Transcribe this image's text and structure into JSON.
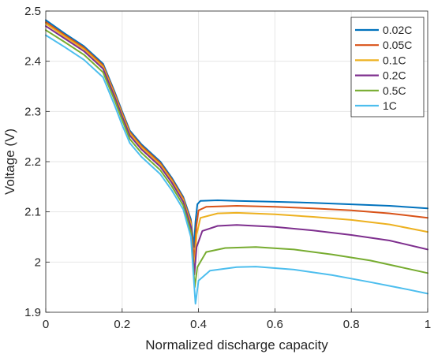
{
  "chart_data": {
    "type": "line",
    "xlabel": "Normalized discharge capacity",
    "ylabel": "Voltage (V)",
    "xlim": [
      0,
      1
    ],
    "ylim": [
      1.9,
      2.5
    ],
    "xticks": [
      "0",
      "0.2",
      "0.4",
      "0.6",
      "0.8",
      "1"
    ],
    "yticks": [
      "1.9",
      "2",
      "2.1",
      "2.2",
      "2.3",
      "2.4",
      "2.5"
    ],
    "grid": true,
    "legend_position": "top-right",
    "series": [
      {
        "name": "0.02C",
        "color": "#0072BD",
        "points": [
          [
            0,
            2.482
          ],
          [
            0.05,
            2.455
          ],
          [
            0.1,
            2.43
          ],
          [
            0.15,
            2.395
          ],
          [
            0.18,
            2.34
          ],
          [
            0.2,
            2.3
          ],
          [
            0.22,
            2.262
          ],
          [
            0.25,
            2.235
          ],
          [
            0.3,
            2.2
          ],
          [
            0.33,
            2.168
          ],
          [
            0.36,
            2.13
          ],
          [
            0.38,
            2.085
          ],
          [
            0.388,
            2.03
          ],
          [
            0.392,
            2.08
          ],
          [
            0.397,
            2.115
          ],
          [
            0.405,
            2.122
          ],
          [
            0.45,
            2.123
          ],
          [
            0.5,
            2.122
          ],
          [
            0.6,
            2.12
          ],
          [
            0.7,
            2.118
          ],
          [
            0.8,
            2.115
          ],
          [
            0.9,
            2.112
          ],
          [
            1.0,
            2.107
          ]
        ]
      },
      {
        "name": "0.05C",
        "color": "#D95319",
        "points": [
          [
            0,
            2.478
          ],
          [
            0.05,
            2.452
          ],
          [
            0.1,
            2.427
          ],
          [
            0.15,
            2.392
          ],
          [
            0.18,
            2.337
          ],
          [
            0.2,
            2.297
          ],
          [
            0.22,
            2.259
          ],
          [
            0.25,
            2.232
          ],
          [
            0.3,
            2.197
          ],
          [
            0.33,
            2.165
          ],
          [
            0.36,
            2.127
          ],
          [
            0.38,
            2.08
          ],
          [
            0.389,
            2.0
          ],
          [
            0.394,
            2.07
          ],
          [
            0.4,
            2.103
          ],
          [
            0.42,
            2.11
          ],
          [
            0.5,
            2.112
          ],
          [
            0.6,
            2.11
          ],
          [
            0.7,
            2.107
          ],
          [
            0.8,
            2.103
          ],
          [
            0.9,
            2.097
          ],
          [
            1.0,
            2.088
          ]
        ]
      },
      {
        "name": "0.1C",
        "color": "#EDB120",
        "points": [
          [
            0,
            2.475
          ],
          [
            0.05,
            2.449
          ],
          [
            0.1,
            2.424
          ],
          [
            0.15,
            2.389
          ],
          [
            0.18,
            2.334
          ],
          [
            0.2,
            2.294
          ],
          [
            0.22,
            2.256
          ],
          [
            0.25,
            2.229
          ],
          [
            0.3,
            2.194
          ],
          [
            0.33,
            2.162
          ],
          [
            0.36,
            2.124
          ],
          [
            0.38,
            2.076
          ],
          [
            0.389,
            1.985
          ],
          [
            0.395,
            2.055
          ],
          [
            0.405,
            2.088
          ],
          [
            0.45,
            2.097
          ],
          [
            0.5,
            2.098
          ],
          [
            0.6,
            2.095
          ],
          [
            0.7,
            2.09
          ],
          [
            0.8,
            2.084
          ],
          [
            0.9,
            2.075
          ],
          [
            1.0,
            2.06
          ]
        ]
      },
      {
        "name": "0.2C",
        "color": "#7E2F8E",
        "points": [
          [
            0,
            2.47
          ],
          [
            0.05,
            2.445
          ],
          [
            0.1,
            2.42
          ],
          [
            0.15,
            2.385
          ],
          [
            0.18,
            2.33
          ],
          [
            0.2,
            2.29
          ],
          [
            0.22,
            2.252
          ],
          [
            0.25,
            2.225
          ],
          [
            0.3,
            2.19
          ],
          [
            0.33,
            2.158
          ],
          [
            0.36,
            2.12
          ],
          [
            0.38,
            2.07
          ],
          [
            0.389,
            1.975
          ],
          [
            0.395,
            2.03
          ],
          [
            0.41,
            2.062
          ],
          [
            0.45,
            2.072
          ],
          [
            0.5,
            2.074
          ],
          [
            0.6,
            2.07
          ],
          [
            0.7,
            2.063
          ],
          [
            0.8,
            2.054
          ],
          [
            0.9,
            2.043
          ],
          [
            1.0,
            2.025
          ]
        ]
      },
      {
        "name": "0.5C",
        "color": "#77AC30",
        "points": [
          [
            0,
            2.462
          ],
          [
            0.05,
            2.438
          ],
          [
            0.1,
            2.413
          ],
          [
            0.15,
            2.378
          ],
          [
            0.18,
            2.323
          ],
          [
            0.2,
            2.283
          ],
          [
            0.22,
            2.245
          ],
          [
            0.25,
            2.218
          ],
          [
            0.3,
            2.183
          ],
          [
            0.33,
            2.151
          ],
          [
            0.36,
            2.113
          ],
          [
            0.38,
            2.06
          ],
          [
            0.39,
            1.95
          ],
          [
            0.397,
            1.99
          ],
          [
            0.42,
            2.02
          ],
          [
            0.47,
            2.028
          ],
          [
            0.55,
            2.03
          ],
          [
            0.65,
            2.025
          ],
          [
            0.75,
            2.015
          ],
          [
            0.85,
            2.003
          ],
          [
            1.0,
            1.978
          ]
        ]
      },
      {
        "name": "1C",
        "color": "#4DBEEE",
        "points": [
          [
            0,
            2.452
          ],
          [
            0.05,
            2.428
          ],
          [
            0.1,
            2.403
          ],
          [
            0.15,
            2.368
          ],
          [
            0.18,
            2.313
          ],
          [
            0.2,
            2.273
          ],
          [
            0.22,
            2.237
          ],
          [
            0.25,
            2.21
          ],
          [
            0.3,
            2.175
          ],
          [
            0.33,
            2.143
          ],
          [
            0.36,
            2.105
          ],
          [
            0.38,
            2.05
          ],
          [
            0.392,
            1.917
          ],
          [
            0.4,
            1.963
          ],
          [
            0.43,
            1.983
          ],
          [
            0.5,
            1.99
          ],
          [
            0.55,
            1.991
          ],
          [
            0.65,
            1.985
          ],
          [
            0.75,
            1.974
          ],
          [
            0.85,
            1.96
          ],
          [
            0.95,
            1.945
          ],
          [
            1.0,
            1.937
          ]
        ]
      }
    ]
  }
}
